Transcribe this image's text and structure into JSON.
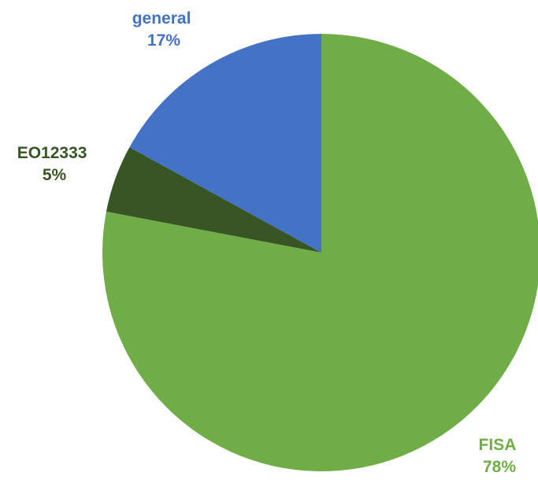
{
  "chart_data": {
    "type": "pie",
    "title": "",
    "slices": [
      {
        "name": "FISA",
        "value": 78,
        "label": "78%",
        "color": "#70ad47"
      },
      {
        "name": "EO12333",
        "value": 5,
        "label": "5%",
        "color": "#375623"
      },
      {
        "name": "general",
        "value": 17,
        "label": "17%",
        "color": "#4472c4"
      }
    ],
    "legend": "none",
    "label_colors": {
      "FISA": "#70ad47",
      "EO12333": "#375623",
      "general": "#4472c4"
    }
  }
}
